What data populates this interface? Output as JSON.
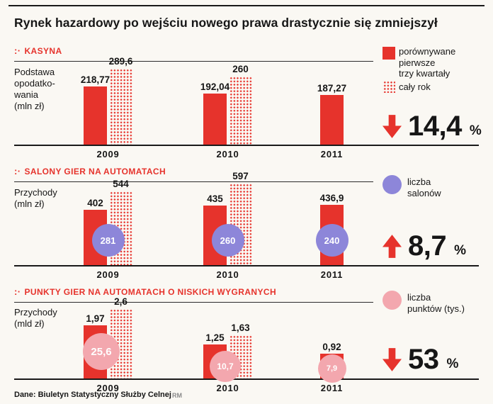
{
  "title": "Rynek hazardowy po wejściu nowego prawa drastycznie się zmniejszył",
  "footer": {
    "source": "Dane: Biuletyn Statystyczny Służby Celnej",
    "credit": "RM"
  },
  "ui": {
    "section_icon": ":·"
  },
  "colors": {
    "red": "#e6332c",
    "purple": "#8d86d9",
    "pink": "#f3a7ae",
    "ink": "#161616"
  },
  "legend": {
    "solid_label": "porównywane\npierwsze\ntrzy kwartały",
    "dotted_label": "cały rok",
    "salons_label": "liczba\nsalonów",
    "points_label": "liczba\npunktów (tys.)"
  },
  "chart_data": [
    {
      "type": "bar",
      "section": "KASYNA",
      "ylabel": "Podstawa opodatkowania (mln zł)",
      "ylabel_display": "Podstawa\nopodatko-\nwania\n(mln zł)",
      "categories": [
        "2009",
        "2010",
        "2011"
      ],
      "series": [
        {
          "name": "porównywane pierwsze trzy kwartały",
          "values": [
            218.77,
            192.04,
            187.27
          ],
          "labels": [
            "218,77",
            "192,04",
            "187,27"
          ]
        },
        {
          "name": "cały rok",
          "values": [
            289.6,
            260,
            null
          ],
          "labels": [
            "289,6",
            "260",
            null
          ]
        }
      ],
      "ylim": [
        0,
        300
      ],
      "change": {
        "direction": "down",
        "value": "14,4",
        "unit": "%"
      }
    },
    {
      "type": "bar",
      "section": "SALONY GIER NA AUTOMATACH",
      "ylabel": "Przychody (mln zł)",
      "ylabel_display": "Przychody\n(mln zł)",
      "categories": [
        "2009",
        "2010",
        "2011"
      ],
      "series": [
        {
          "name": "porównywane pierwsze trzy kwartały",
          "values": [
            402,
            435,
            436.9
          ],
          "labels": [
            "402",
            "435",
            "436,9"
          ]
        },
        {
          "name": "cały rok",
          "values": [
            544,
            597,
            null
          ],
          "labels": [
            "544",
            "597",
            null
          ]
        }
      ],
      "bubbles": {
        "name": "liczba salonów",
        "values": [
          "281",
          "260",
          "240"
        ]
      },
      "ylim": [
        0,
        620
      ],
      "change": {
        "direction": "up",
        "value": "8,7",
        "unit": "%"
      }
    },
    {
      "type": "bar",
      "section": "PUNKTY GIER NA AUTOMATACH O NISKICH WYGRANYCH",
      "ylabel": "Przychody (mld zł)",
      "ylabel_display": "Przychody\n(mld zł)",
      "categories": [
        "2009",
        "2010",
        "2011"
      ],
      "series": [
        {
          "name": "porównywane pierwsze trzy kwartały",
          "values": [
            1.97,
            1.25,
            0.92
          ],
          "labels": [
            "1,97",
            "1,25",
            "0,92"
          ]
        },
        {
          "name": "cały rok",
          "values": [
            2.6,
            1.63,
            null
          ],
          "labels": [
            "2,6",
            "1,63",
            null
          ]
        }
      ],
      "bubbles": {
        "name": "liczba punktów (tys.)",
        "values": [
          "25,6",
          "10,7",
          "7,9"
        ]
      },
      "ylim": [
        0,
        2.7
      ],
      "change": {
        "direction": "down",
        "value": "53",
        "unit": "%"
      }
    }
  ]
}
